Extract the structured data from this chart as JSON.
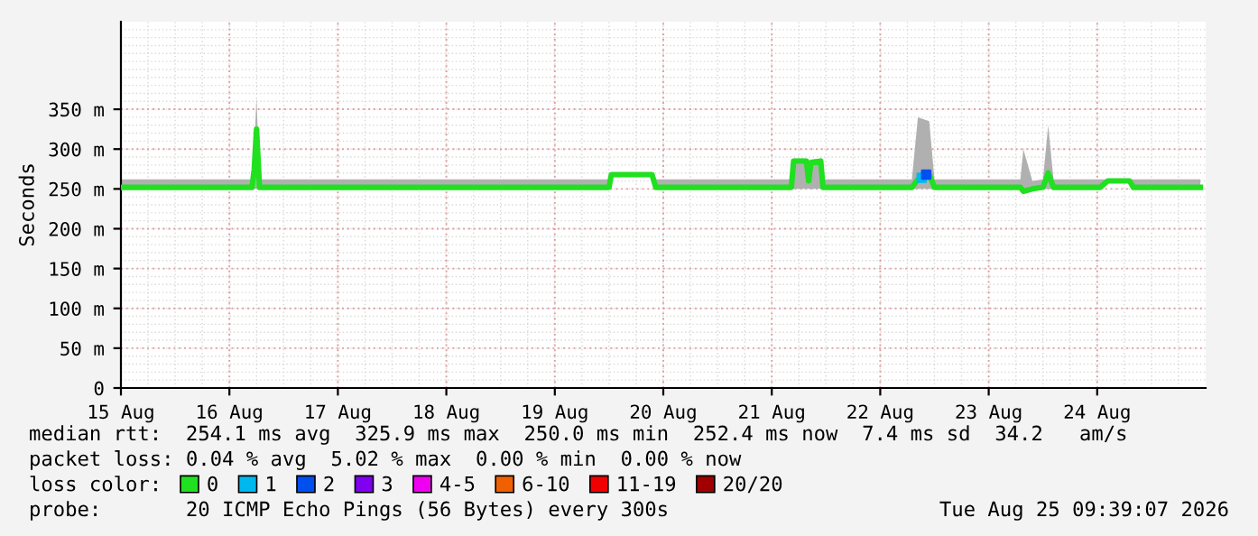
{
  "chart_data": {
    "type": "line",
    "ylabel": "Seconds",
    "legend_title": "loss color:",
    "legend": "bottom left",
    "grid": true,
    "xlim": [
      "2026-08-15",
      "2026-08-25"
    ],
    "xticks": [
      {
        "value": "2026-08-15",
        "label": "15 Aug"
      },
      {
        "value": "2026-08-16",
        "label": "16 Aug"
      },
      {
        "value": "2026-08-17",
        "label": "17 Aug"
      },
      {
        "value": "2026-08-18",
        "label": "18 Aug"
      },
      {
        "value": "2026-08-19",
        "label": "19 Aug"
      },
      {
        "value": "2026-08-20",
        "label": "20 Aug"
      },
      {
        "value": "2026-08-21",
        "label": "21 Aug"
      },
      {
        "value": "2026-08-22",
        "label": "22 Aug"
      },
      {
        "value": "2026-08-23",
        "label": "23 Aug"
      },
      {
        "value": "2026-08-24",
        "label": "24 Aug"
      }
    ],
    "ylim": [
      0,
      460
    ],
    "yticks": [
      0,
      {
        "value": 50,
        "label": "50 m"
      },
      {
        "value": 100,
        "label": "100 m"
      },
      {
        "value": 150,
        "label": "150 m"
      },
      {
        "value": 200,
        "label": "200 m"
      },
      {
        "value": 250,
        "label": "250 m"
      },
      {
        "value": 300,
        "label": "300 m"
      },
      {
        "value": 350,
        "label": "350 m"
      }
    ],
    "series": [
      {
        "name": "0",
        "color": "#20e020",
        "x": [
          "2026-08-15T00:00",
          "2026-08-16T05:00",
          "2026-08-16T05:30",
          "2026-08-16T06:00",
          "2026-08-16T06:40",
          "2026-08-19T12:00",
          "2026-08-19T12:30",
          "2026-08-19T21:30",
          "2026-08-19T22:20",
          "2026-08-21T04:20",
          "2026-08-21T04:50",
          "2026-08-21T07:40",
          "2026-08-21T08:10",
          "2026-08-21T08:40",
          "2026-08-21T10:50",
          "2026-08-21T11:20",
          "2026-08-22T07:00",
          "2026-08-22T08:20",
          "2026-08-22T10:50",
          "2026-08-22T12:00",
          "2026-08-23T07:00",
          "2026-08-23T07:40",
          "2026-08-23T09:40",
          "2026-08-23T12:00",
          "2026-08-23T13:10",
          "2026-08-23T14:20",
          "2026-08-24T00:40",
          "2026-08-24T02:20",
          "2026-08-24T07:10",
          "2026-08-24T08:00",
          "2026-08-24T22:50"
        ],
        "values": [
          252,
          252,
          275,
          325,
          252,
          252,
          268,
          268,
          252,
          252,
          285,
          285,
          260,
          283,
          285,
          252,
          252,
          262,
          268,
          252,
          252,
          247,
          250,
          252,
          270,
          252,
          252,
          260,
          260,
          252,
          252
        ],
        "lower": [
          250,
          250,
          250,
          250,
          250,
          250,
          265,
          265,
          250,
          250,
          250,
          250,
          250,
          250,
          250,
          250,
          250,
          250,
          250,
          250,
          250,
          245,
          248,
          250,
          250,
          250,
          250,
          258,
          258,
          250,
          250
        ],
        "upper": [
          262,
          262,
          300,
          365,
          262,
          262,
          270,
          270,
          262,
          262,
          288,
          288,
          285,
          287,
          288,
          262,
          262,
          340,
          335,
          262,
          262,
          300,
          260,
          262,
          330,
          262,
          262,
          262,
          262,
          262,
          262
        ]
      },
      {
        "name": "1",
        "color": "#00b8f0",
        "type": "scatter",
        "x": [
          "2026-08-22T09:10"
        ],
        "values": [
          264
        ]
      },
      {
        "name": "2",
        "color": "#0050f0",
        "type": "scatter",
        "x": [
          "2026-08-22T10:10"
        ],
        "values": [
          268
        ]
      },
      {
        "name": "3",
        "color": "#8000f0",
        "type": "scatter"
      },
      {
        "name": "4-5",
        "color": "#f000f0",
        "type": "scatter"
      },
      {
        "name": "6-10",
        "color": "#f06000",
        "type": "scatter"
      },
      {
        "name": "11-19",
        "color": "#f00000",
        "type": "scatter"
      },
      {
        "name": "20/20",
        "color": "#a00000",
        "type": "scatter"
      }
    ],
    "annotations": [
      "median rtt:  254.1 ms avg  325.9 ms max  250.0 ms min  252.4 ms now  7.4 ms sd  34.2   am/s",
      "packet loss: 0.04 % avg  5.02 % max  0.00 % min  0.00 % now",
      "probe:       20 ICMP Echo Pings (56 Bytes) every 300s",
      "Tue Aug 25 09:39:07 2026"
    ]
  }
}
